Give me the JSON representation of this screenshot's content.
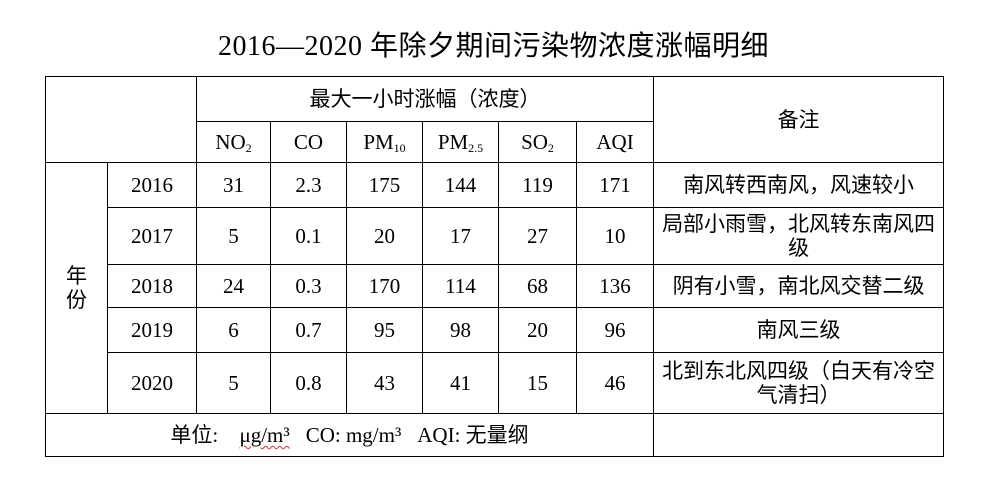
{
  "title": "2016—2020 年除夕期间污染物浓度涨幅明细",
  "header": {
    "group_label": "最大一小时涨幅（浓度）",
    "notes_label": "备注",
    "row_group_label_chars": [
      "年",
      "份"
    ],
    "pollutants": [
      {
        "base": "NO",
        "sub": "2"
      },
      {
        "base": "CO",
        "sub": ""
      },
      {
        "base": "PM",
        "sub": "10"
      },
      {
        "base": "PM",
        "sub": "2.5"
      },
      {
        "base": "SO",
        "sub": "2"
      },
      {
        "base": "AQI",
        "sub": ""
      }
    ]
  },
  "rows": [
    {
      "year": "2016",
      "no2": "31",
      "co": "2.3",
      "pm10": "175",
      "pm25": "144",
      "so2": "119",
      "aqi": "171",
      "note": "南风转西南风，风速较小"
    },
    {
      "year": "2017",
      "no2": "5",
      "co": "0.1",
      "pm10": "20",
      "pm25": "17",
      "so2": "27",
      "aqi": "10",
      "note": "局部小雨雪，北风转东南风四级"
    },
    {
      "year": "2018",
      "no2": "24",
      "co": "0.3",
      "pm10": "170",
      "pm25": "114",
      "so2": "68",
      "aqi": "136",
      "note": "阴有小雪，南北风交替二级"
    },
    {
      "year": "2019",
      "no2": "6",
      "co": "0.7",
      "pm10": "95",
      "pm25": "98",
      "so2": "20",
      "aqi": "96",
      "note": "南风三级"
    },
    {
      "year": "2020",
      "no2": "5",
      "co": "0.8",
      "pm10": "43",
      "pm25": "41",
      "so2": "15",
      "aqi": "46",
      "note": "北到东北风四级（白天有冷空气清扫）"
    }
  ],
  "footer": {
    "unit_prefix": "单位: ",
    "unit_value": "μg/m³",
    "co_unit": "CO: mg/m³",
    "aqi_unit": "AQI:  无量纲"
  }
}
